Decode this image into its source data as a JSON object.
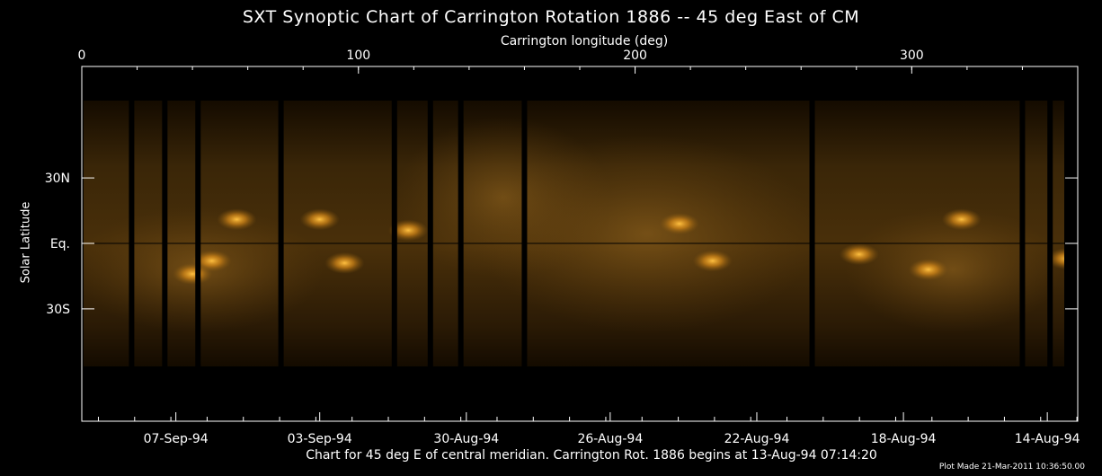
{
  "title": "SXT Synoptic Chart of Carrington Rotation 1886 -- 45 deg East of CM",
  "caption": "Chart for 45 deg E of central meridian.  Carrington Rot. 1886 begins at 13-Aug-94 07:14:20",
  "plot_made": "Plot Made 21-Mar-2011 10:36:50.00",
  "colors": {
    "frame": "#ffffff",
    "background": "#000000",
    "corona_dark": "#140b00",
    "corona_mid": "#6a4510",
    "corona_bright": "#ffb020"
  },
  "chart_data": {
    "type": "heatmap",
    "title": "SXT Synoptic Chart of Carrington Rotation 1886 -- 45 deg East of CM",
    "x_top": {
      "label": "Carrington longitude (deg)",
      "range": [
        0,
        360
      ],
      "ticks": [
        0,
        100,
        200,
        300
      ],
      "tick_labels": [
        "0",
        "100",
        "200",
        "300"
      ]
    },
    "y": {
      "label": "Solar Latitude",
      "ticks": [
        30,
        0,
        -30
      ],
      "tick_labels": [
        "30N",
        "Eq.",
        "30S"
      ],
      "range_deg": [
        -80,
        80
      ],
      "reference_line": 0
    },
    "x_bottom": {
      "tick_labels": [
        "07-Sep-94",
        "03-Sep-94",
        "30-Aug-94",
        "26-Aug-94",
        "22-Aug-94",
        "18-Aug-94",
        "14-Aug-94"
      ],
      "tick_longitudes": [
        34,
        86,
        139,
        191,
        244,
        297,
        349
      ]
    },
    "grid": false,
    "bright_regions": [
      {
        "lon": 47,
        "lat": -8
      },
      {
        "lon": 56,
        "lat": 11
      },
      {
        "lon": 40,
        "lat": -14
      },
      {
        "lon": 95,
        "lat": -9
      },
      {
        "lon": 86,
        "lat": 11
      },
      {
        "lon": 118,
        "lat": 6
      },
      {
        "lon": 228,
        "lat": -8
      },
      {
        "lon": 216,
        "lat": 9
      },
      {
        "lon": 281,
        "lat": -5
      },
      {
        "lon": 306,
        "lat": -12
      },
      {
        "lon": 318,
        "lat": 11
      },
      {
        "lon": 356,
        "lat": -7
      }
    ],
    "data_gaps_lon": [
      18,
      30,
      42,
      72,
      113,
      126,
      137,
      160,
      264,
      340,
      350
    ]
  }
}
